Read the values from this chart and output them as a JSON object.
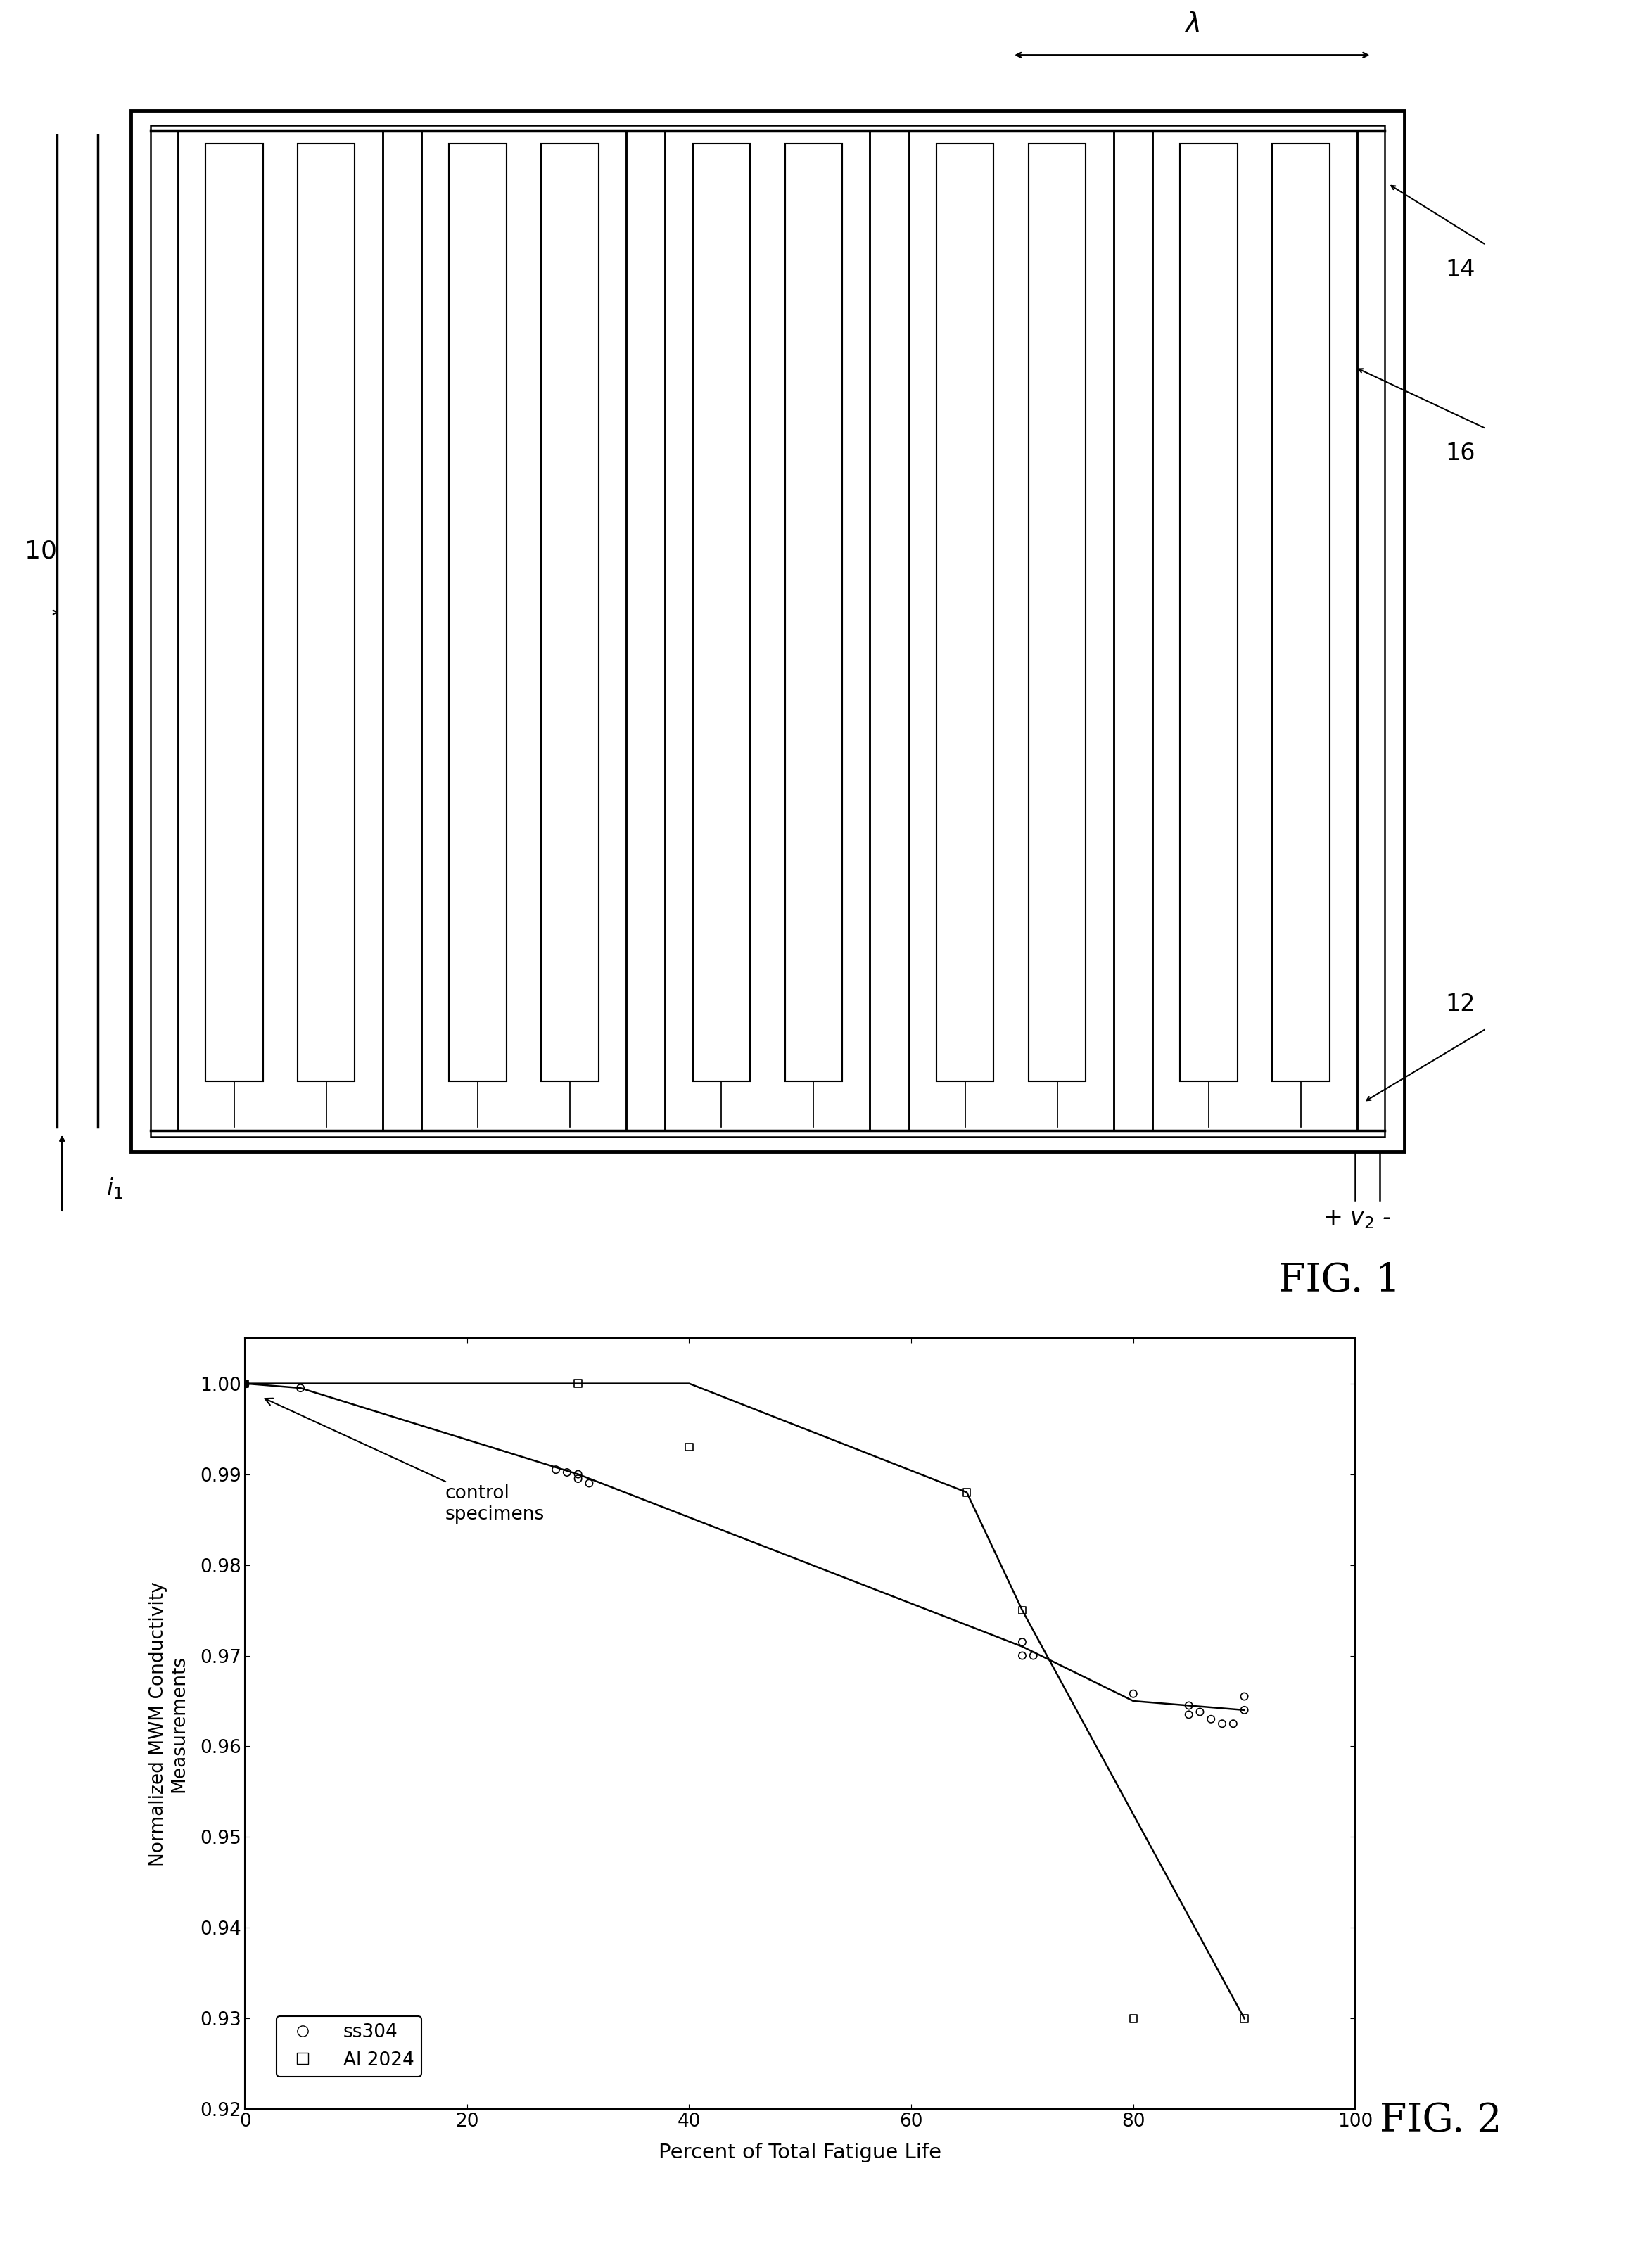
{
  "fig1": {
    "title": "FIG. 1",
    "label_10": "10",
    "label_12": "12",
    "label_14": "14",
    "label_16": "16",
    "label_i1": "$i_1$",
    "label_v2": "+ $v_2$ -",
    "label_lambda": "$\\lambda$"
  },
  "fig2": {
    "title": "FIG. 2",
    "xlabel": "Percent of Total Fatigue Life",
    "ylabel": "Normalized MWM Conductivity\nMeasurements",
    "annotation": "control\nspecimens",
    "ss304_line_x": [
      0,
      5,
      30,
      70,
      80,
      90
    ],
    "ss304_line_y": [
      1.0,
      0.9995,
      0.99,
      0.971,
      0.965,
      0.964
    ],
    "al2024_line_x": [
      0,
      40,
      65,
      70,
      90
    ],
    "al2024_line_y": [
      1.0,
      1.0,
      0.988,
      0.975,
      0.93
    ],
    "ss304_scatter_x": [
      0,
      5,
      28,
      29,
      30,
      30,
      31,
      70,
      70,
      71,
      80,
      85,
      85,
      86,
      87,
      88,
      89,
      90,
      90
    ],
    "ss304_scatter_y": [
      1.0,
      0.9995,
      0.9905,
      0.9902,
      0.99,
      0.9895,
      0.989,
      0.9715,
      0.97,
      0.97,
      0.9658,
      0.9645,
      0.9635,
      0.9638,
      0.963,
      0.9625,
      0.9625,
      0.9655,
      0.964
    ],
    "al2024_scatter_x": [
      0,
      30,
      40,
      65,
      70,
      80,
      90
    ],
    "al2024_scatter_y": [
      1.0,
      1.0,
      0.993,
      0.988,
      0.975,
      0.93,
      0.93
    ],
    "xlim": [
      0,
      100
    ],
    "ylim": [
      0.92,
      1.005
    ],
    "yticks": [
      0.92,
      0.93,
      0.94,
      0.95,
      0.96,
      0.97,
      0.98,
      0.99,
      1.0
    ],
    "xticks": [
      0,
      20,
      40,
      60,
      80,
      100
    ]
  },
  "background_color": "#ffffff",
  "line_color": "#000000"
}
